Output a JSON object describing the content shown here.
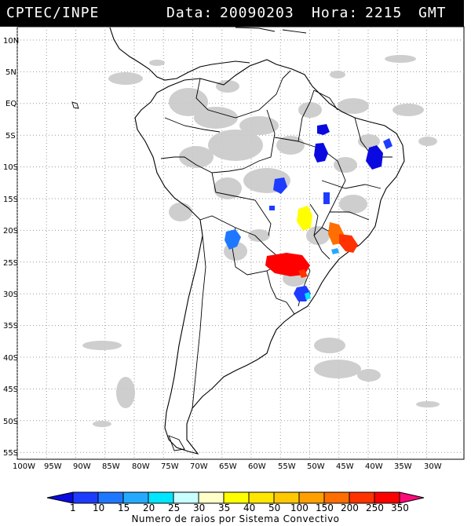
{
  "header": {
    "source": "CPTEC/INPE",
    "date_label": "Data:",
    "date": "20090203",
    "hour_label": "Hora:",
    "hour": "2215",
    "tz": "GMT"
  },
  "map": {
    "lat_ticks": [
      "10N",
      "5N",
      "EQ",
      "5S",
      "10S",
      "15S",
      "20S",
      "25S",
      "30S",
      "35S",
      "40S",
      "45S",
      "50S",
      "55S"
    ],
    "lon_ticks": [
      "100W",
      "95W",
      "90W",
      "85W",
      "80W",
      "75W",
      "70W",
      "65W",
      "60W",
      "55W",
      "50W",
      "45W",
      "40W",
      "35W",
      "30W"
    ],
    "extent": {
      "lon": [
        -100,
        -27
      ],
      "lat": [
        12,
        -56
      ]
    },
    "gridlines": true
  },
  "legend": {
    "values": [
      "1",
      "10",
      "15",
      "20",
      "25",
      "30",
      "35",
      "40",
      "50",
      "100",
      "150",
      "200",
      "250",
      "350"
    ],
    "colors": [
      "#0a0ae0",
      "#1e3cff",
      "#1e78ff",
      "#23aaff",
      "#00e6ff",
      "#c8ffff",
      "#ffffc8",
      "#ffff00",
      "#ffe600",
      "#ffc800",
      "#ffa000",
      "#ff6e00",
      "#ff3200",
      "#ff0000",
      "#ff0a78"
    ],
    "title": "Numero de raios por Sistema Convectivo"
  },
  "colors": {
    "cloud": "#c8c8c8",
    "coast": "#000000",
    "background": "#ffffff"
  }
}
